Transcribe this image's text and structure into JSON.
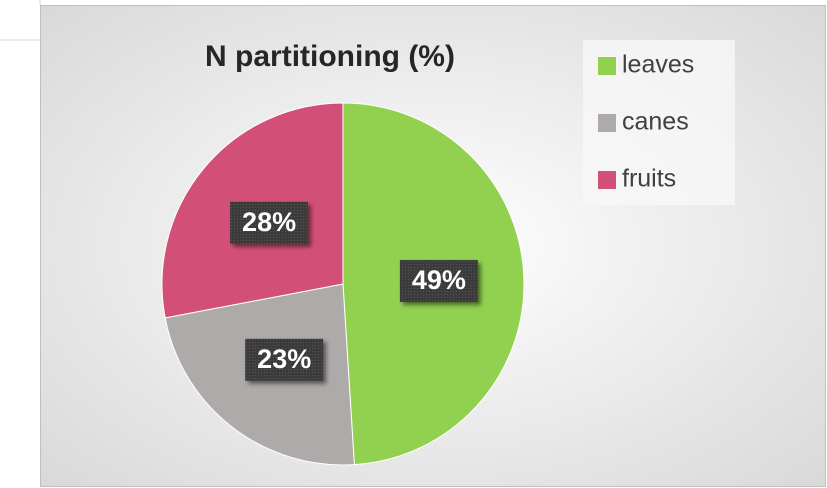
{
  "chart_data": {
    "type": "pie",
    "title": "N partitioning (%)",
    "categories": [
      "leaves",
      "canes",
      "fruits"
    ],
    "values": [
      49,
      23,
      28
    ],
    "value_labels": [
      "49%",
      "23%",
      "28%"
    ],
    "colors": [
      "#92d050",
      "#aeaaaa",
      "#d24f78"
    ],
    "legend": "right"
  }
}
